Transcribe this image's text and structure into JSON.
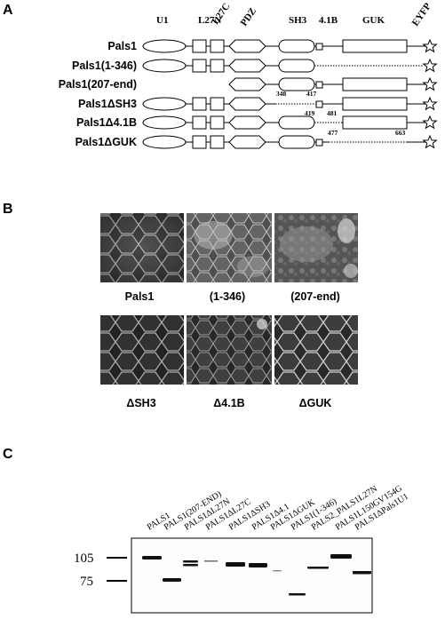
{
  "panels": {
    "a": "A",
    "b": "B",
    "c": "C"
  },
  "domains": {
    "u1": "U1",
    "l27n": "L27N",
    "l27c": "L27C",
    "pdz": "PDZ",
    "sh3": "SH3",
    "b41": "4.1B",
    "guk": "GUK",
    "eyfp": "EYFP"
  },
  "constructs": [
    {
      "label": "Pals1"
    },
    {
      "label": "Pals1(1-346)"
    },
    {
      "label": "Pals1(207-end)"
    },
    {
      "label": "Pals1ΔSH3",
      "left_num": "348",
      "right_num": "417"
    },
    {
      "label": "Pals1Δ4.1B",
      "left_num": "419",
      "right_num": "481"
    },
    {
      "label": "Pals1ΔGUK",
      "left_num": "477",
      "right_num": "663"
    }
  ],
  "micrographs": [
    {
      "label": "Pals1"
    },
    {
      "label": "(1-346)"
    },
    {
      "label": "(207-end)"
    },
    {
      "label": "ΔSH3"
    },
    {
      "label": "Δ4.1B"
    },
    {
      "label": "ΔGUK"
    }
  ],
  "blot": {
    "lanes": [
      "PALS1",
      "PALS1(207-END)",
      "PALS1ΔL27N",
      "PALS1ΔL27C",
      "PALS1ΔSH3",
      "PALS1Δ4.1",
      "PALS1ΔGUK",
      "PALS1(1-346)",
      "PALS2_PALS1L27N",
      "PALS1L150GV154G",
      "PALS1ΔPals1U1"
    ],
    "markers": [
      "105",
      "75"
    ]
  }
}
